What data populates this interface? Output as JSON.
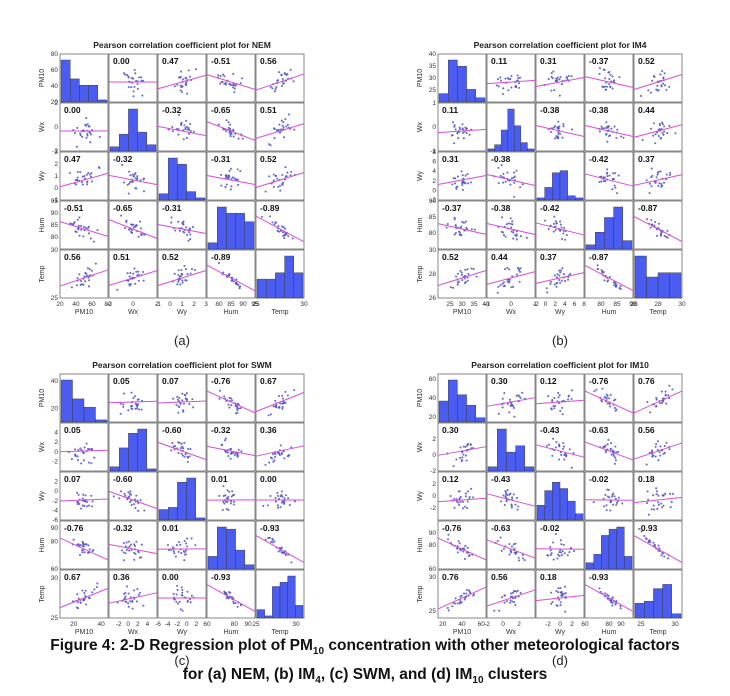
{
  "chart_data": [
    {
      "type": "scatter-matrix",
      "title": "Pearson correlation coefficient plot for NEM",
      "panel_label": "(a)",
      "variables": [
        "PM10",
        "Wx",
        "Wy",
        "Hum",
        "Temp"
      ],
      "ranges": [
        [
          20,
          80
        ],
        [
          -2,
          2
        ],
        [
          -1,
          3
        ],
        [
          75,
          95
        ],
        [
          25,
          30
        ]
      ],
      "ticks": [
        [
          20,
          40,
          60,
          80
        ],
        [
          -2,
          0,
          2
        ],
        [
          -1,
          0,
          1,
          2,
          3
        ],
        [
          80,
          85,
          90,
          95
        ],
        [
          25,
          30
        ]
      ],
      "correlations": [
        [
          1,
          0.0,
          0.47,
          -0.51,
          0.56
        ],
        [
          0.0,
          1,
          -0.32,
          -0.65,
          0.51
        ],
        [
          0.47,
          -0.32,
          1,
          -0.31,
          0.52
        ],
        [
          -0.51,
          -0.65,
          -0.31,
          1,
          -0.89
        ],
        [
          0.56,
          0.51,
          0.52,
          -0.89,
          1
        ]
      ],
      "correlation_labels": [
        [
          "",
          "0.00",
          "0.47",
          "-0.51",
          "0.56"
        ],
        [
          "0.00",
          "",
          "-0.32",
          "-0.65",
          "0.51"
        ],
        [
          "0.47",
          "-0.32",
          "",
          "-0.31",
          "0.52"
        ],
        [
          "-0.51",
          "-0.65",
          "-0.31",
          "",
          "-0.89"
        ],
        [
          "0.56",
          "0.51",
          "0.52",
          "-0.89",
          ""
        ]
      ],
      "histograms": [
        [
          1.0,
          0.55,
          0.4,
          0.4,
          0.05
        ],
        [
          0.1,
          0.4,
          1.0,
          0.45,
          0.15
        ],
        [
          0.15,
          1.0,
          0.85,
          0.2,
          0.05
        ],
        [
          0.15,
          1.0,
          0.85,
          0.85,
          0.65
        ],
        [
          0.45,
          0.45,
          0.6,
          1.0,
          0.6
        ]
      ]
    },
    {
      "type": "scatter-matrix",
      "title": "Pearson correlation coefficient plot for IM4",
      "panel_label": "(b)",
      "variables": [
        "PM10",
        "Wx",
        "Wy",
        "Hum",
        "Temp"
      ],
      "ranges": [
        [
          20,
          40
        ],
        [
          -1,
          1
        ],
        [
          -2,
          8
        ],
        [
          75,
          90
        ],
        [
          26,
          30
        ]
      ],
      "ticks": [
        [
          25,
          30,
          35,
          40
        ],
        [
          -1,
          0,
          1
        ],
        [
          -2,
          0,
          2,
          4,
          6,
          8
        ],
        [
          80,
          85,
          90
        ],
        [
          26,
          28,
          30
        ]
      ],
      "correlations": [
        [
          1,
          0.11,
          0.31,
          -0.37,
          0.52
        ],
        [
          0.11,
          1,
          -0.38,
          -0.38,
          0.44
        ],
        [
          0.31,
          -0.38,
          1,
          -0.42,
          0.37
        ],
        [
          -0.37,
          -0.38,
          -0.42,
          1,
          -0.87
        ],
        [
          0.52,
          0.44,
          0.37,
          -0.87,
          1
        ]
      ],
      "correlation_labels": [
        [
          "",
          "0.11",
          "0.31",
          "-0.37",
          "0.52"
        ],
        [
          "0.11",
          "",
          "-0.38",
          "-0.38",
          "0.44"
        ],
        [
          "0.31",
          "-0.38",
          "",
          "-0.42",
          "0.37"
        ],
        [
          "-0.37",
          "-0.38",
          "-0.42",
          "",
          "-0.87"
        ],
        [
          "0.52",
          "0.44",
          "0.37",
          "-0.87",
          ""
        ]
      ],
      "histograms": [
        [
          0.2,
          1.0,
          0.85,
          0.3,
          0.1
        ],
        [
          0.05,
          0.15,
          0.5,
          1.0,
          0.6,
          0.2,
          0.05
        ],
        [
          0.05,
          0.3,
          0.65,
          0.7,
          0.1,
          0.05
        ],
        [
          0.1,
          0.4,
          0.75,
          1.0,
          0.2
        ],
        [
          1.0,
          0.5,
          0.6,
          0.6
        ]
      ]
    },
    {
      "type": "scatter-matrix",
      "title": "Pearson correlation coefficient plot for SWM",
      "panel_label": "(c)",
      "variables": [
        "PM10",
        "Wx",
        "Wy",
        "Hum",
        "Temp"
      ],
      "ranges": [
        [
          10,
          45
        ],
        [
          -4,
          6
        ],
        [
          -6,
          4
        ],
        [
          60,
          95
        ],
        [
          25,
          31
        ]
      ],
      "ticks": [
        [
          20,
          40
        ],
        [
          -2,
          0,
          2,
          4
        ],
        [
          -6,
          -4,
          -2,
          0,
          2
        ],
        [
          60,
          80,
          90
        ],
        [
          25,
          30
        ]
      ],
      "correlations": [
        [
          1,
          0.05,
          0.07,
          -0.76,
          0.67
        ],
        [
          0.05,
          1,
          -0.6,
          -0.32,
          0.36
        ],
        [
          0.07,
          -0.6,
          1,
          0.01,
          0.0
        ],
        [
          -0.76,
          -0.32,
          0.01,
          1,
          -0.93
        ],
        [
          0.67,
          0.36,
          0.0,
          -0.93,
          1
        ]
      ],
      "correlation_labels": [
        [
          "",
          "0.05",
          "0.07",
          "-0.76",
          "0.67"
        ],
        [
          "0.05",
          "",
          "-0.60",
          "-0.32",
          "0.36"
        ],
        [
          "0.07",
          "-0.60",
          "",
          "0.01",
          "0.00"
        ],
        [
          "-0.76",
          "-0.32",
          "0.01",
          "",
          "-0.93"
        ],
        [
          "0.67",
          "0.36",
          "0.00",
          "-0.93",
          ""
        ]
      ],
      "histograms": [
        [
          1.0,
          0.55,
          0.35,
          0.05
        ],
        [
          0.1,
          0.55,
          0.9,
          1.0,
          0.05
        ],
        [
          0.25,
          0.3,
          0.9,
          1.0,
          0.05
        ],
        [
          0.3,
          1.0,
          0.95,
          0.45,
          0.1
        ],
        [
          0.2,
          0.05,
          0.75,
          0.85,
          1.0,
          0.3
        ]
      ]
    },
    {
      "type": "scatter-matrix",
      "title": "Pearson correlation coefficient plot for IM10",
      "panel_label": "(d)",
      "variables": [
        "PM10",
        "Wx",
        "Wy",
        "Hum",
        "Temp"
      ],
      "ranges": [
        [
          15,
          65
        ],
        [
          -2,
          4
        ],
        [
          -4,
          4
        ],
        [
          60,
          100
        ],
        [
          24,
          31
        ]
      ],
      "ticks": [
        [
          20,
          40,
          60
        ],
        [
          -2,
          0,
          2
        ],
        [
          -2,
          0,
          2
        ],
        [
          60,
          80,
          90
        ],
        [
          25,
          30
        ]
      ],
      "correlations": [
        [
          1,
          0.3,
          0.12,
          -0.76,
          0.76
        ],
        [
          0.3,
          1,
          -0.43,
          -0.63,
          0.56
        ],
        [
          0.12,
          -0.43,
          1,
          -0.02,
          0.18
        ],
        [
          -0.76,
          -0.63,
          -0.02,
          1,
          -0.93
        ],
        [
          0.76,
          0.56,
          0.18,
          -0.93,
          1
        ]
      ],
      "correlation_labels": [
        [
          "",
          "0.30",
          "0.12",
          "-0.76",
          "0.76"
        ],
        [
          "0.30",
          "",
          "-0.43",
          "-0.63",
          "0.56"
        ],
        [
          "0.12",
          "-0.43",
          "",
          "-0.02",
          "0.18"
        ],
        [
          "-0.76",
          "-0.63",
          "-0.02",
          "",
          "-0.93"
        ],
        [
          "0.76",
          "0.56",
          "0.18",
          "-0.93",
          ""
        ]
      ],
      "histograms": [
        [
          0.5,
          1.0,
          0.65,
          0.4,
          0.1
        ],
        [
          0.1,
          1.0,
          0.45,
          0.6,
          0.1
        ],
        [
          0.35,
          0.7,
          0.9,
          0.75,
          0.45,
          0.15
        ],
        [
          0.15,
          0.35,
          0.8,
          0.95,
          1.0,
          0.3
        ],
        [
          0.35,
          0.4,
          0.7,
          0.8,
          0.1
        ]
      ]
    }
  ],
  "caption": {
    "line1_prefix": "Figure 4: 2-D Regression plot of PM",
    "line1_sub": "10",
    "line1_suffix": " concentration with other meteorological factors",
    "line2_a": "for (a) NEM, (b) IM",
    "line2_sub1": "4",
    "line2_b": ", (c) SWM, and (d) IM",
    "line2_sub2": "10",
    "line2_c": " clusters"
  },
  "colors": {
    "histogram_fill": "#4b5cf0",
    "scatter_point": "#4a52c8",
    "regression_line": "#d94cd9"
  }
}
